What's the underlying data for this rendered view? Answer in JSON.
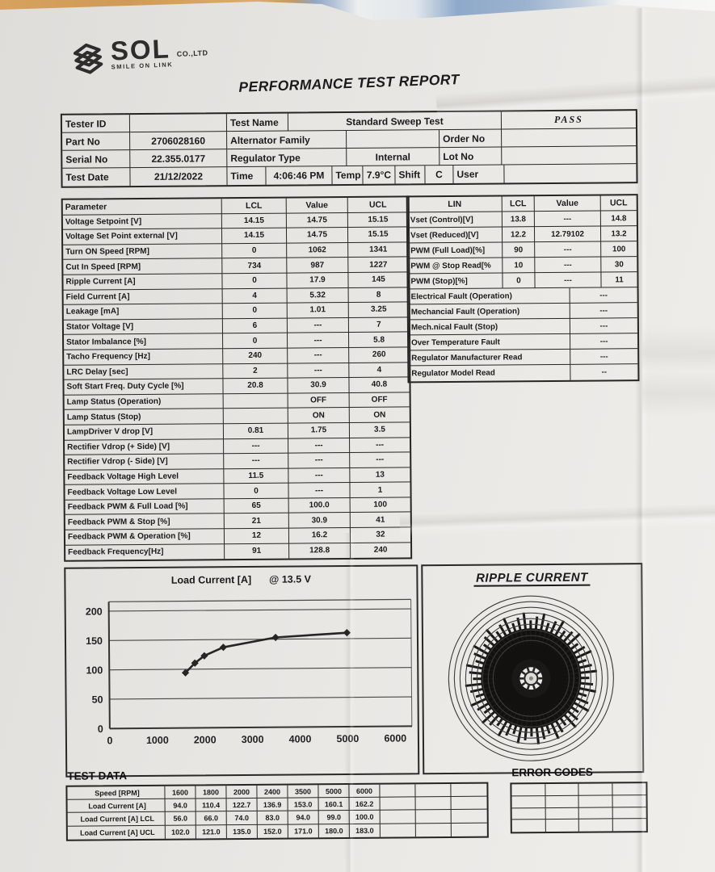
{
  "brand": {
    "name": "SOL",
    "tagline": "SMILE ON LINK",
    "suffix": "CO.,LTD"
  },
  "doc": {
    "title": "PERFORMANCE TEST REPORT"
  },
  "colors": {
    "ink": "#1b1b1b",
    "paper": "#e8e6e3",
    "border": "#262524"
  },
  "info": {
    "tester_id": {
      "label": "Tester ID",
      "value": ""
    },
    "test_name": {
      "label": "Test Name",
      "value": "Standard Sweep Test"
    },
    "result": "PASS",
    "part_no": {
      "label": "Part No",
      "value": "2706028160"
    },
    "alternator_family": {
      "label": "Alternator Family",
      "value": ""
    },
    "order_no": {
      "label": "Order No",
      "value": ""
    },
    "serial_no": {
      "label": "Serial No",
      "value": "22.355.0177"
    },
    "regulator_type": {
      "label": "Regulator Type",
      "value": "Internal"
    },
    "lot_no": {
      "label": "Lot No",
      "value": ""
    },
    "test_date": {
      "label": "Test Date",
      "value": "21/12/2022"
    },
    "time": {
      "label": "Time",
      "value": "4:06:46 PM"
    },
    "temp": {
      "label": "Temp",
      "value": "7.9°C"
    },
    "shift": {
      "label": "Shift",
      "value": "C"
    },
    "user": {
      "label": "User",
      "value": ""
    }
  },
  "param_table": {
    "headers": [
      "Parameter",
      "LCL",
      "Value",
      "UCL"
    ],
    "rows": [
      [
        "Voltage Setpoint [V]",
        "14.15",
        "14.75",
        "15.15"
      ],
      [
        "Voltage Set Point external [V]",
        "14.15",
        "14.75",
        "15.15"
      ],
      [
        "Turn ON Speed [RPM]",
        "0",
        "1062",
        "1341"
      ],
      [
        "Cut In Speed [RPM]",
        "734",
        "987",
        "1227"
      ],
      [
        "Ripple Current [A]",
        "0",
        "17.9",
        "145"
      ],
      [
        "Field Current [A]",
        "4",
        "5.32",
        "8"
      ],
      [
        "Leakage [mA]",
        "0",
        "1.01",
        "3.25"
      ],
      [
        "Stator Voltage [V]",
        "6",
        "---",
        "7"
      ],
      [
        "Stator Imbalance [%]",
        "0",
        "---",
        "5.8"
      ],
      [
        "Tacho Frequency [Hz]",
        "240",
        "---",
        "260"
      ],
      [
        "LRC Delay [sec]",
        "2",
        "---",
        "4"
      ],
      [
        "Soft Start Freq. Duty Cycle [%]",
        "20.8",
        "30.9",
        "40.8"
      ],
      [
        "Lamp Status (Operation)",
        "",
        "OFF",
        "OFF"
      ],
      [
        "Lamp Status (Stop)",
        "",
        "ON",
        "ON"
      ],
      [
        "LampDriver V drop [V]",
        "0.81",
        "1.75",
        "3.5"
      ],
      [
        "Rectifier Vdrop (+ Side) [V]",
        "---",
        "---",
        "---"
      ],
      [
        "Rectifier Vdrop (- Side) [V]",
        "---",
        "---",
        "---"
      ],
      [
        "Feedback Voltage High Level",
        "11.5",
        "---",
        "13"
      ],
      [
        "Feedback Voltage Low Level",
        "0",
        "---",
        "1"
      ],
      [
        "Feedback PWM & Full Load [%]",
        "65",
        "100.0",
        "100"
      ],
      [
        "Feedback PWM & Stop [%]",
        "21",
        "30.9",
        "41"
      ],
      [
        "Feedback PWM & Operation [%]",
        "12",
        "16.2",
        "32"
      ],
      [
        "Feedback Frequency[Hz]",
        "91",
        "128.8",
        "240"
      ]
    ]
  },
  "lin_table": {
    "headers": [
      "LIN",
      "LCL",
      "Value",
      "UCL"
    ],
    "rows": [
      [
        "Vset (Control)[V]",
        "13.8",
        "---",
        "14.8"
      ],
      [
        "Vset (Reduced)[V]",
        "12.2",
        "12.79102",
        "13.2"
      ],
      [
        "PWM (Full Load)[%]",
        "90",
        "---",
        "100"
      ],
      [
        "PWM @ Stop Read[%",
        "10",
        "---",
        "30"
      ],
      [
        "PWM (Stop)[%]",
        "0",
        "---",
        "11"
      ]
    ],
    "status_rows": [
      [
        "Electrical Fault (Operation)",
        "---"
      ],
      [
        "Mechancial Fault (Operation)",
        "---"
      ],
      [
        "Mech.nical Fault (Stop)",
        "---"
      ],
      [
        "Over Temperature Fault",
        "---"
      ],
      [
        "Regulator Manufacturer Read",
        "---"
      ],
      [
        "Regulator Model Read",
        "--"
      ]
    ]
  },
  "chart_data": [
    {
      "type": "line",
      "title": "Load Current [A]",
      "subtitle": "@ 13.5 V",
      "x": [
        1600,
        1800,
        2000,
        2400,
        3500,
        5000
      ],
      "series": [
        {
          "name": "Load Current [A] @ 13.5 V",
          "values": [
            94.0,
            110.4,
            122.7,
            136.9,
            153.0,
            160.1
          ]
        }
      ],
      "xticks": [
        0,
        1000,
        2000,
        3000,
        4000,
        5000,
        6000
      ],
      "yticks": [
        0,
        50,
        100,
        150,
        200
      ],
      "xlim": [
        0,
        6350
      ],
      "ylim": [
        0,
        216
      ],
      "grid": true,
      "legend": false,
      "marker": "diamond"
    },
    {
      "type": "polar",
      "title": "RIPPLE CURRENT"
    }
  ],
  "test_data": {
    "title": "TEST DATA",
    "rows": [
      {
        "label": "Speed [RPM]",
        "values": [
          "1600",
          "1800",
          "2000",
          "2400",
          "3500",
          "5000",
          "6000"
        ]
      },
      {
        "label": "Load Current [A]",
        "values": [
          "94.0",
          "110.4",
          "122.7",
          "136.9",
          "153.0",
          "160.1",
          "162.2"
        ]
      },
      {
        "label": "Load Current [A] LCL",
        "values": [
          "56.0",
          "66.0",
          "74.0",
          "83.0",
          "94.0",
          "99.0",
          "100.0"
        ]
      },
      {
        "label": "Load Current [A] UCL",
        "values": [
          "102.0",
          "121.0",
          "135.0",
          "152.0",
          "171.0",
          "180.0",
          "183.0"
        ]
      }
    ],
    "empty_cols": 3
  },
  "error_codes": {
    "title": "ERROR CODES",
    "rows": 4,
    "cols": 4
  }
}
